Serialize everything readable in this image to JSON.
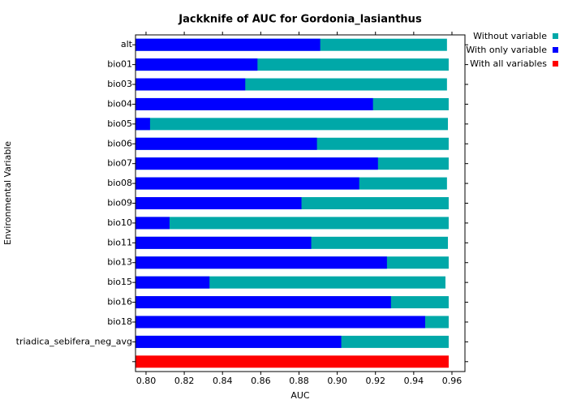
{
  "chart_data": {
    "type": "barh",
    "title": "Jackknife of AUC for Gordonia_lasianthus",
    "xlabel": "AUC",
    "ylabel": "Environmental Variable",
    "categories": [
      "alt",
      "bio01",
      "bio03",
      "bio04",
      "bio05",
      "bio06",
      "bio07",
      "bio08",
      "bio09",
      "bio10",
      "bio11",
      "bio13",
      "bio15",
      "bio16",
      "bio18",
      "triadica_sebifera_neg_avg",
      null
    ],
    "series": [
      {
        "name": "Without variable",
        "color": "#00a8a8",
        "values": [
          0.9574,
          0.9583,
          0.9574,
          0.9583,
          0.9579,
          0.9583,
          0.9583,
          0.9574,
          0.9583,
          0.9583,
          0.9579,
          0.9583,
          0.9566,
          0.9583,
          0.9583,
          0.9583,
          null
        ]
      },
      {
        "name": "With only variable",
        "color": "#0000ff",
        "values": [
          0.8911,
          0.8583,
          0.8519,
          0.9187,
          0.8021,
          0.8894,
          0.9213,
          0.9115,
          0.8813,
          0.8123,
          0.8864,
          0.926,
          0.8332,
          0.9281,
          0.946,
          0.9021,
          null
        ]
      },
      {
        "name": "With all variables",
        "color": "#ff0000",
        "values": [
          null,
          null,
          null,
          null,
          null,
          null,
          null,
          null,
          null,
          null,
          null,
          null,
          null,
          null,
          null,
          null,
          0.9583
        ]
      }
    ],
    "xlim": [
      0.7945,
      0.9668
    ],
    "xticks": [
      {
        "value": 0.8,
        "label": "0.80"
      },
      0.82,
      0.84,
      0.86,
      0.88,
      {
        "value": 0.9,
        "label": "0.90"
      },
      0.92,
      0.94,
      0.96
    ],
    "legend": "upper right"
  }
}
